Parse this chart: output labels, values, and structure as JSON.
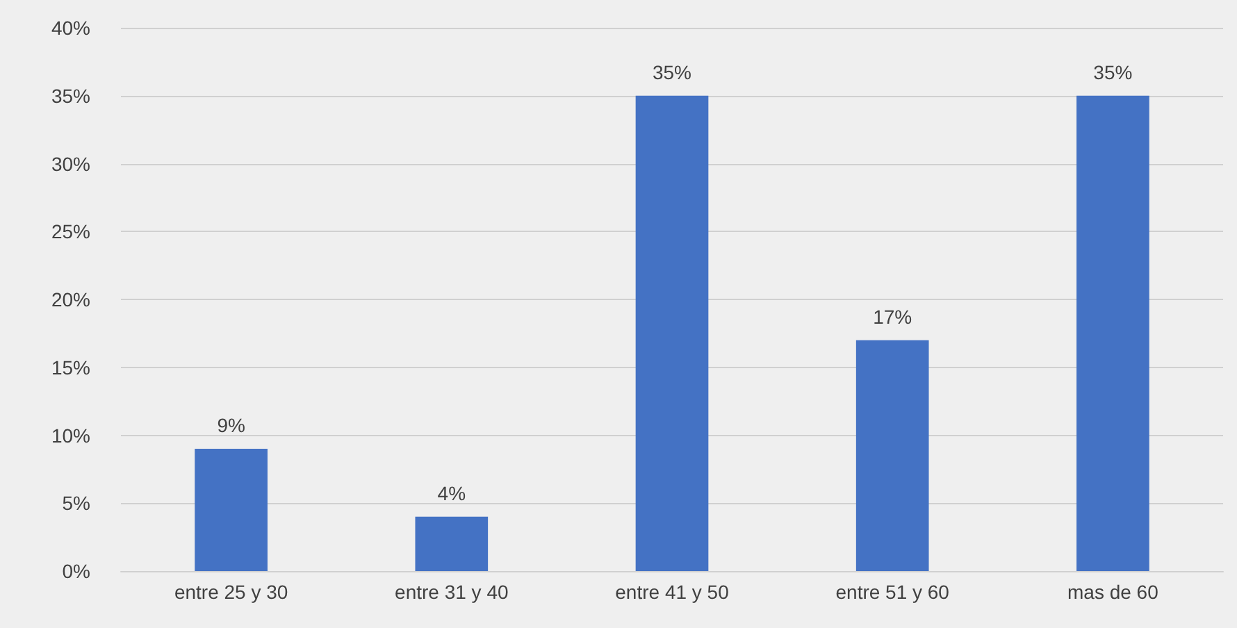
{
  "chart_data": {
    "type": "bar",
    "categories": [
      "entre 25 y 30",
      "entre 31 y 40",
      "entre 41 y 50",
      "entre 51 y 60",
      "mas de 60"
    ],
    "values": [
      9,
      4,
      35,
      17,
      35
    ],
    "value_labels": [
      "9%",
      "4%",
      "35%",
      "17%",
      "35%"
    ],
    "color": "#4472c4",
    "ylim": [
      0,
      40
    ],
    "yticks": [
      {
        "value": 0,
        "label": "0%"
      },
      {
        "value": 5,
        "label": "5%"
      },
      {
        "value": 10,
        "label": "10%"
      },
      {
        "value": 15,
        "label": "15%"
      },
      {
        "value": 20,
        "label": "20%"
      },
      {
        "value": 25,
        "label": "25%"
      },
      {
        "value": 30,
        "label": "30%"
      },
      {
        "value": 35,
        "label": "35%"
      },
      {
        "value": 40,
        "label": "40%"
      }
    ],
    "grid": true
  }
}
